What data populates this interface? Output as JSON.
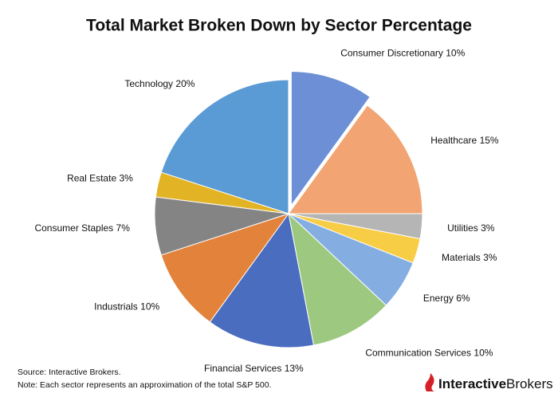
{
  "chart_data": {
    "type": "pie",
    "title": "Total Market Broken Down by Sector Percentage",
    "categories": [
      "Consumer Discretionary",
      "Healthcare",
      "Utilities",
      "Materials",
      "Energy",
      "Communication Services",
      "Financial Services",
      "Industrials",
      "Consumer Staples",
      "Real Estate",
      "Technology"
    ],
    "values": [
      10,
      15,
      3,
      3,
      6,
      10,
      13,
      10,
      7,
      3,
      20
    ],
    "value_labels": [
      "10%",
      "15%",
      "3%",
      "3%",
      "6%",
      "10%",
      "13%",
      "10%",
      "7%",
      "3%",
      "20%"
    ],
    "colors": [
      "#6d8fd6",
      "#f2a472",
      "#b5b5b5",
      "#f7cd45",
      "#84ade2",
      "#9cc97f",
      "#4a6dbf",
      "#e3823a",
      "#848484",
      "#e2b425",
      "#5b9bd5"
    ],
    "exploded": [
      0
    ],
    "source": "Source: Interactive Brokers.",
    "note": "Note: Each sector represents an approximation of the total S&P 500.",
    "brand": [
      "Interactive",
      "Brokers"
    ]
  }
}
